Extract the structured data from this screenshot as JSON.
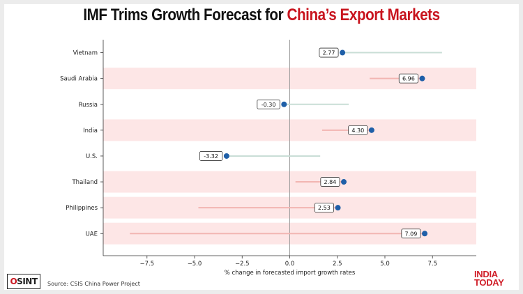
{
  "title": {
    "prefix": "IMF Trims Growth Forecast for ",
    "highlight": "China’s Export Markets"
  },
  "source": "Source:  CSIS China Power Project",
  "logos": {
    "osint": "OSINT",
    "brand_line1": "INDIA",
    "brand_line2": "TODAY"
  },
  "colors": {
    "dot": "#1f5fa8",
    "line_positive": "#f2b5b2",
    "line_negative": "#c9ded6",
    "band": "#fde6e6",
    "title_accent": "#c8141e"
  },
  "chart_data": {
    "type": "dot",
    "xlabel": "% change in forecasted import growth rates",
    "xlim": [
      -9.8,
      9.8
    ],
    "xticks": [
      -7.5,
      -5.0,
      -2.5,
      0.0,
      2.5,
      5.0,
      7.5
    ],
    "xtick_labels": [
      "−7.5",
      "−5.0",
      "−2.5",
      "0.0",
      "2.5",
      "5.0",
      "7.5"
    ],
    "grid": false,
    "categories": [
      "Vietnam",
      "Saudi Arabia",
      "Russia",
      "India",
      "U.S.",
      "Thailand",
      "Philippines",
      "UAE"
    ],
    "values": [
      2.77,
      6.96,
      -0.3,
      4.3,
      -3.32,
      2.84,
      2.53,
      7.09
    ],
    "labels": [
      "2.77",
      "6.96",
      "-0.30",
      "4.30",
      "-3.32",
      "2.84",
      "2.53",
      "7.09"
    ],
    "line_start": [
      8.0,
      4.2,
      3.1,
      1.7,
      1.6,
      0.3,
      -4.8,
      -8.4
    ],
    "highlighted": [
      false,
      true,
      false,
      true,
      false,
      true,
      true,
      true
    ]
  }
}
